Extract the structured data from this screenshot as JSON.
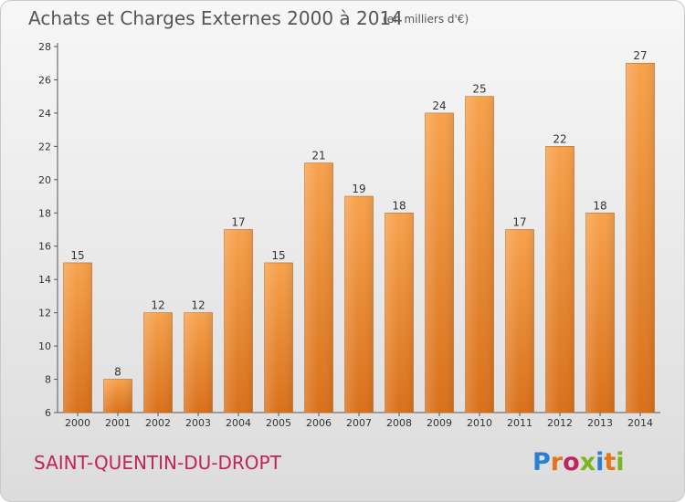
{
  "title": "Achats et Charges Externes 2000 à 2014",
  "unit": "(en milliers d'€)",
  "commune": "SAINT-QUENTIN-DU-DROPT",
  "logo": {
    "text": "Proxiti",
    "letter_colors": [
      "#2a7fd4",
      "#e2741a",
      "#c0245c",
      "#7ab51d",
      "#2a7fd4",
      "#e2741a",
      "#7ab51d"
    ]
  },
  "colors": {
    "bar_light": "#f7a24c",
    "bar_dark": "#d9701a",
    "axis": "#555555"
  },
  "chart_data": {
    "type": "bar",
    "title": "Achats et Charges Externes 2000 à 2014",
    "categories": [
      "2000",
      "2001",
      "2002",
      "2003",
      "2004",
      "2005",
      "2006",
      "2007",
      "2008",
      "2009",
      "2010",
      "2011",
      "2012",
      "2013",
      "2014"
    ],
    "values": [
      15,
      8,
      12,
      12,
      17,
      15,
      21,
      19,
      18,
      24,
      25,
      17,
      22,
      18,
      27
    ],
    "ylim": [
      6,
      28
    ],
    "yticks": [
      6,
      8,
      10,
      12,
      14,
      16,
      18,
      20,
      22,
      24,
      26,
      28
    ],
    "grid": false,
    "legend": "none"
  }
}
